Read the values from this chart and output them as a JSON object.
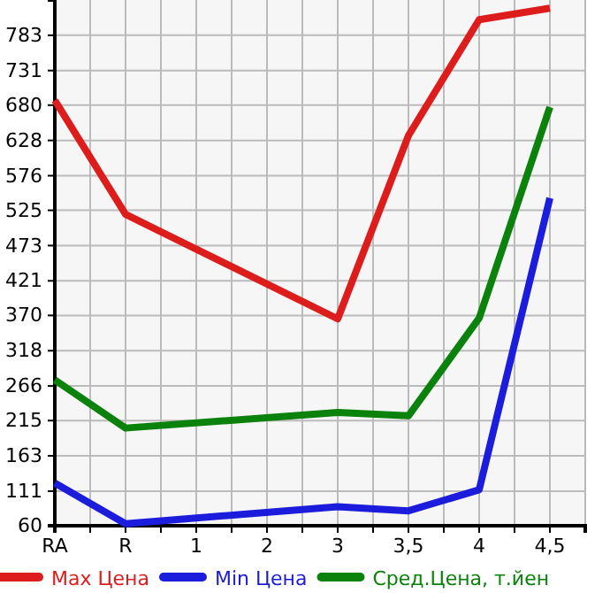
{
  "chart_data": {
    "type": "line",
    "categories": [
      "RA",
      "R",
      "1",
      "2",
      "3",
      "3,5",
      "4",
      "4,5"
    ],
    "series": [
      {
        "name": "Max Цена",
        "color": "#dd1c1c",
        "values": [
          687,
          519,
          null,
          null,
          365,
          635,
          806,
          823
        ]
      },
      {
        "name": "Min Цена",
        "color": "#1c1cdd",
        "values": [
          123,
          63,
          null,
          null,
          88,
          82,
          113,
          543
        ]
      },
      {
        "name": "Сред.Цена, т.йен",
        "color": "#0b820b",
        "values": [
          275,
          204,
          null,
          null,
          227,
          222,
          366,
          677
        ]
      }
    ],
    "ylim": [
      60,
      835
    ],
    "yticks": [
      60,
      111,
      163,
      215,
      266,
      318,
      370,
      421,
      473,
      525,
      576,
      628,
      680,
      731,
      783
    ],
    "grid": true,
    "legend": "bottom",
    "marker": "none",
    "line_style": "solid"
  }
}
